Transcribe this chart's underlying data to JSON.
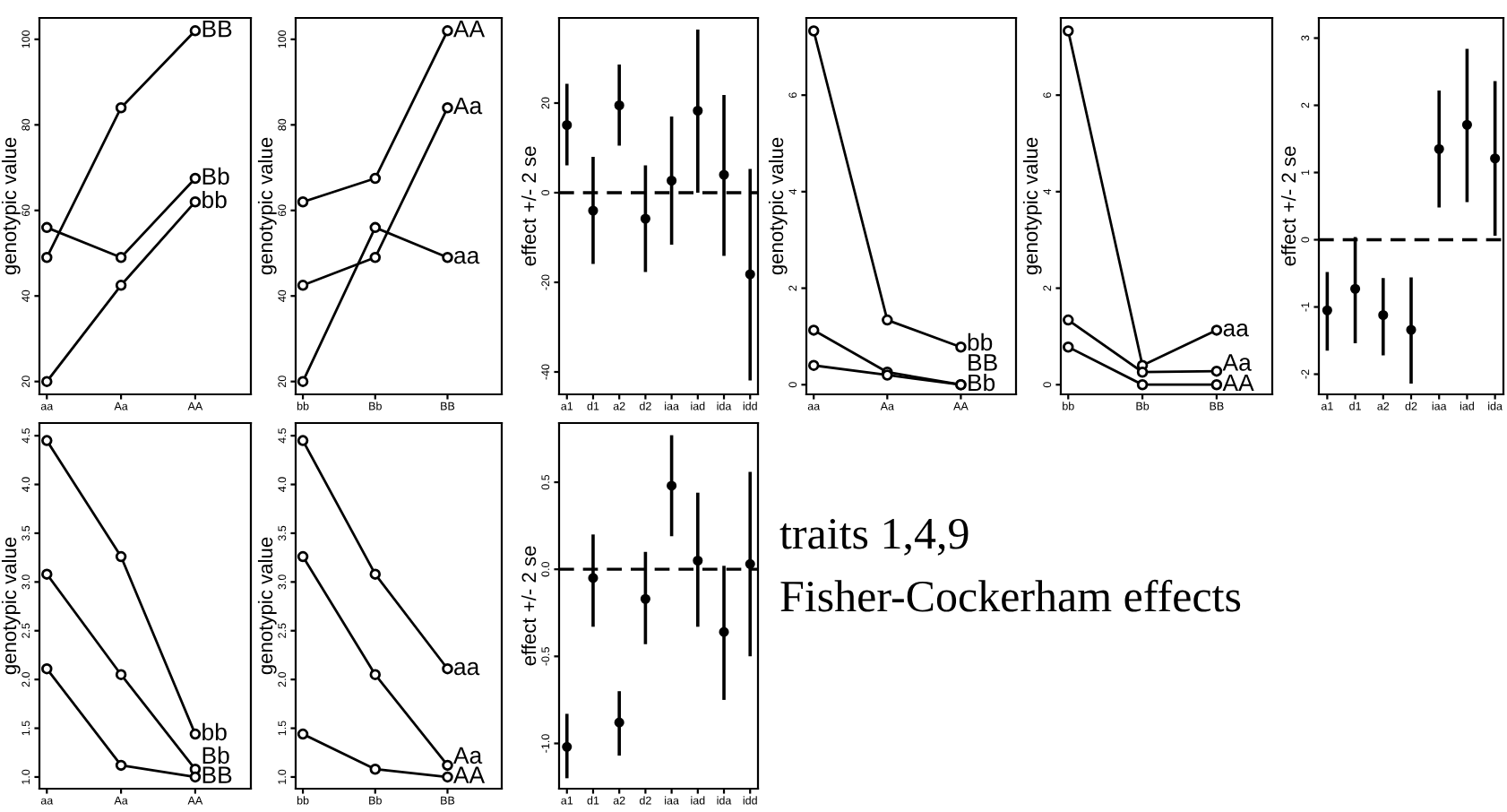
{
  "chart_data": [
    {
      "type": "line",
      "categories": [
        "aa",
        "Aa",
        "AA"
      ],
      "ylabel": "genotypic value",
      "ylim": [
        17,
        105
      ],
      "yticks": [
        20,
        40,
        60,
        80,
        100
      ],
      "marker": "circle",
      "series": [
        {
          "name": "BB",
          "color": "#000000",
          "values": [
            49,
            84,
            102
          ]
        },
        {
          "name": "Bb",
          "color": "#000000",
          "values": [
            56,
            49,
            67.5
          ]
        },
        {
          "name": "bb",
          "color": "#000000",
          "values": [
            20,
            42.5,
            62
          ]
        }
      ]
    },
    {
      "type": "line",
      "categories": [
        "bb",
        "Bb",
        "BB"
      ],
      "ylabel": "genotypic value",
      "ylim": [
        17,
        105
      ],
      "yticks": [
        20,
        40,
        60,
        80,
        100
      ],
      "marker": "circle",
      "series": [
        {
          "name": "AA",
          "color": "#000000",
          "values": [
            62,
            67.5,
            102
          ]
        },
        {
          "name": "Aa",
          "color": "#000000",
          "values": [
            42.5,
            49,
            84
          ]
        },
        {
          "name": "aa",
          "color": "#000000",
          "values": [
            20,
            56,
            49
          ]
        }
      ]
    },
    {
      "type": "scatter",
      "categories": [
        "a1",
        "d1",
        "a2",
        "d2",
        "iaa",
        "iad",
        "ida",
        "idd"
      ],
      "ylabel": "effect +/- 2 se",
      "ylim": [
        -45,
        39
      ],
      "yticks": [
        -40,
        -20,
        0,
        20
      ],
      "marker": "circle",
      "color": "#000000",
      "values": [
        15.1,
        -4,
        19.5,
        -5.8,
        2.7,
        18.3,
        4,
        -18.2
      ],
      "errors": [
        [
          6.1,
          24.3
        ],
        [
          -15.9,
          8
        ],
        [
          10.5,
          28.6
        ],
        [
          -17.7,
          6.1
        ],
        [
          -11.6,
          17
        ],
        [
          0,
          36.4
        ],
        [
          -14.1,
          21.8
        ],
        [
          -41.9,
          5.3
        ]
      ],
      "ref_lines": [
        {
          "axis": "y",
          "value": 0,
          "line_style": "dashed",
          "color": "#000000"
        }
      ]
    },
    {
      "type": "line",
      "categories": [
        "aa",
        "Aa",
        "AA"
      ],
      "ylabel": "genotypic value",
      "ylim": [
        -0.2,
        7.6
      ],
      "yticks": [
        0,
        2,
        4,
        6
      ],
      "marker": "circle",
      "series": [
        {
          "name": "bb",
          "color": "#000000",
          "values": [
            7.33,
            1.34,
            0.78
          ]
        },
        {
          "name": "Bb",
          "color": "#000000",
          "values": [
            1.13,
            0.26,
            0
          ]
        },
        {
          "name": "BB",
          "color": "#000000",
          "values": [
            0.4,
            0.2,
            0
          ]
        }
      ]
    },
    {
      "type": "line",
      "categories": [
        "bb",
        "Bb",
        "BB"
      ],
      "ylabel": "genotypic value",
      "ylim": [
        -0.2,
        7.6
      ],
      "yticks": [
        0,
        2,
        4,
        6
      ],
      "marker": "circle",
      "series": [
        {
          "name": "aa",
          "color": "#000000",
          "values": [
            7.33,
            0.4,
            1.13
          ]
        },
        {
          "name": "Aa",
          "color": "#000000",
          "values": [
            1.34,
            0.26,
            0.28
          ]
        },
        {
          "name": "AA",
          "color": "#000000",
          "values": [
            0.78,
            0,
            0
          ]
        }
      ]
    },
    {
      "type": "scatter",
      "categories": [
        "a1",
        "d1",
        "a2",
        "d2",
        "iaa",
        "iad",
        "ida"
      ],
      "ylabel": "effect +/- 2 se",
      "ylim": [
        -2.3,
        3.3
      ],
      "yticks": [
        -2,
        -1,
        0,
        1,
        2,
        3
      ],
      "marker": "circle",
      "color": "#000000",
      "values": [
        -1.05,
        -0.73,
        -1.12,
        -1.34,
        1.35,
        1.71,
        1.21
      ],
      "errors": [
        [
          -1.65,
          -0.48
        ],
        [
          -1.54,
          0.04
        ],
        [
          -1.72,
          -0.57
        ],
        [
          -2.14,
          -0.56
        ],
        [
          0.48,
          2.22
        ],
        [
          0.56,
          2.84
        ],
        [
          0.06,
          2.36
        ]
      ],
      "ref_lines": [
        {
          "axis": "y",
          "value": 0,
          "line_style": "dashed",
          "color": "#000000"
        }
      ]
    },
    {
      "type": "line",
      "categories": [
        "aa",
        "Aa",
        "AA"
      ],
      "ylabel": "genotypic value",
      "ylim": [
        0.88,
        4.63
      ],
      "yticks": [
        {
          "value": 1,
          "label": "1.0"
        },
        1.5,
        {
          "value": 2,
          "label": "2.0"
        },
        2.5,
        {
          "value": 3,
          "label": "3.0"
        },
        3.5,
        {
          "value": 4,
          "label": "4.0"
        },
        4.5
      ],
      "marker": "circle",
      "series": [
        {
          "name": "bb",
          "color": "#000000",
          "values": [
            4.45,
            3.26,
            1.44
          ]
        },
        {
          "name": "Bb",
          "color": "#000000",
          "values": [
            3.08,
            2.05,
            1.08
          ]
        },
        {
          "name": "BB",
          "color": "#000000",
          "values": [
            2.11,
            1.12,
            1.0
          ]
        }
      ]
    },
    {
      "type": "line",
      "categories": [
        "bb",
        "Bb",
        "BB"
      ],
      "ylabel": "genotypic value",
      "ylim": [
        0.88,
        4.63
      ],
      "yticks": [
        {
          "value": 1,
          "label": "1.0"
        },
        1.5,
        {
          "value": 2,
          "label": "2.0"
        },
        2.5,
        {
          "value": 3,
          "label": "3.0"
        },
        3.5,
        {
          "value": 4,
          "label": "4.0"
        },
        4.5
      ],
      "marker": "circle",
      "series": [
        {
          "name": "aa",
          "color": "#000000",
          "values": [
            4.45,
            3.08,
            2.11
          ]
        },
        {
          "name": "Aa",
          "color": "#000000",
          "values": [
            3.26,
            2.05,
            1.12
          ]
        },
        {
          "name": "AA",
          "color": "#000000",
          "values": [
            1.44,
            1.08,
            1.0
          ]
        }
      ]
    },
    {
      "type": "scatter",
      "categories": [
        "a1",
        "d1",
        "a2",
        "d2",
        "iaa",
        "iad",
        "ida",
        "idd"
      ],
      "ylabel": "effect +/- 2 se",
      "ylim": [
        -1.26,
        0.84
      ],
      "yticks": [
        {
          "value": -1,
          "label": "-1.0"
        },
        -0.5,
        {
          "value": 0,
          "label": "0.0"
        },
        0.5
      ],
      "marker": "circle",
      "color": "#000000",
      "values": [
        -1.02,
        -0.05,
        -0.88,
        -0.17,
        0.48,
        0.05,
        -0.36,
        0.03
      ],
      "errors": [
        [
          -1.2,
          -0.83
        ],
        [
          -0.33,
          0.2
        ],
        [
          -1.07,
          -0.7
        ],
        [
          -0.43,
          0.1
        ],
        [
          0.19,
          0.77
        ],
        [
          -0.33,
          0.44
        ],
        [
          -0.75,
          0.02
        ],
        [
          -0.5,
          0.56
        ]
      ],
      "ref_lines": [
        {
          "axis": "y",
          "value": 0,
          "line_style": "dashed",
          "color": "#000000"
        }
      ]
    },
    {
      "type": "other",
      "annotations": [
        "traits 1,4,9",
        "Fisher-Cockerham effects"
      ]
    }
  ]
}
